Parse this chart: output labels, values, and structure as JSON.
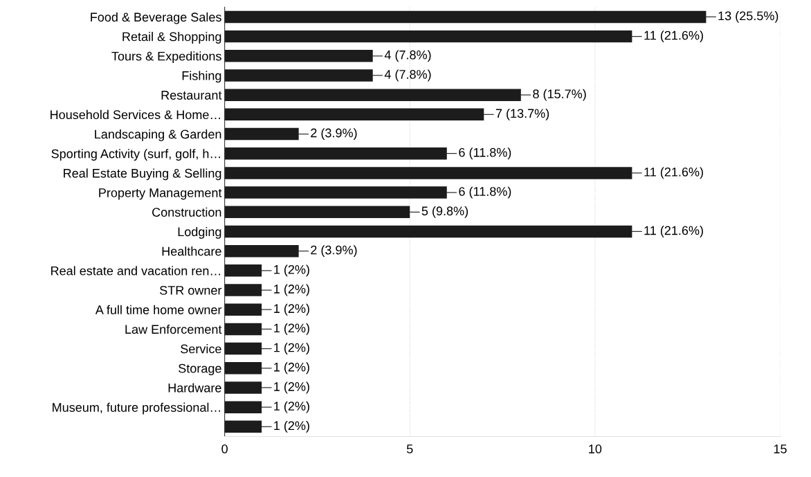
{
  "chart_data": {
    "type": "bar",
    "orientation": "horizontal",
    "categories": [
      "Food & Beverage Sales",
      "Retail & Shopping",
      "Tours & Expeditions",
      "Fishing",
      "Restaurant",
      "Household Services & Home…",
      "Landscaping & Garden",
      "Sporting Activity (surf, golf, h…",
      "Real Estate Buying & Selling",
      "Property Management",
      "Construction",
      "Lodging",
      "Healthcare",
      "Real estate and vacation ren…",
      "STR owner",
      "A full time home owner",
      "Law Enforcement",
      "Service",
      "Storage",
      "Hardware",
      "Museum, future professional…",
      null
    ],
    "values": [
      13,
      11,
      4,
      4,
      8,
      7,
      2,
      6,
      11,
      6,
      5,
      11,
      2,
      1,
      1,
      1,
      1,
      1,
      1,
      1,
      1,
      1
    ],
    "value_labels": [
      "13 (25.5%)",
      "11 (21.6%)",
      "4 (7.8%)",
      "4 (7.8%)",
      "8 (15.7%)",
      "7 (13.7%)",
      "2 (3.9%)",
      "6 (11.8%)",
      "11 (21.6%)",
      "6 (11.8%)",
      "5 (9.8%)",
      "11 (21.6%)",
      "2 (3.9%)",
      "1 (2%)",
      "1 (2%)",
      "1 (2%)",
      "1 (2%)",
      "1 (2%)",
      "1 (2%)",
      "1 (2%)",
      "1 (2%)",
      "1 (2%)"
    ],
    "color": "#1c1c1c",
    "xlim": [
      0,
      15
    ],
    "xticks": [
      0,
      5,
      10,
      15
    ],
    "grid": "x"
  }
}
